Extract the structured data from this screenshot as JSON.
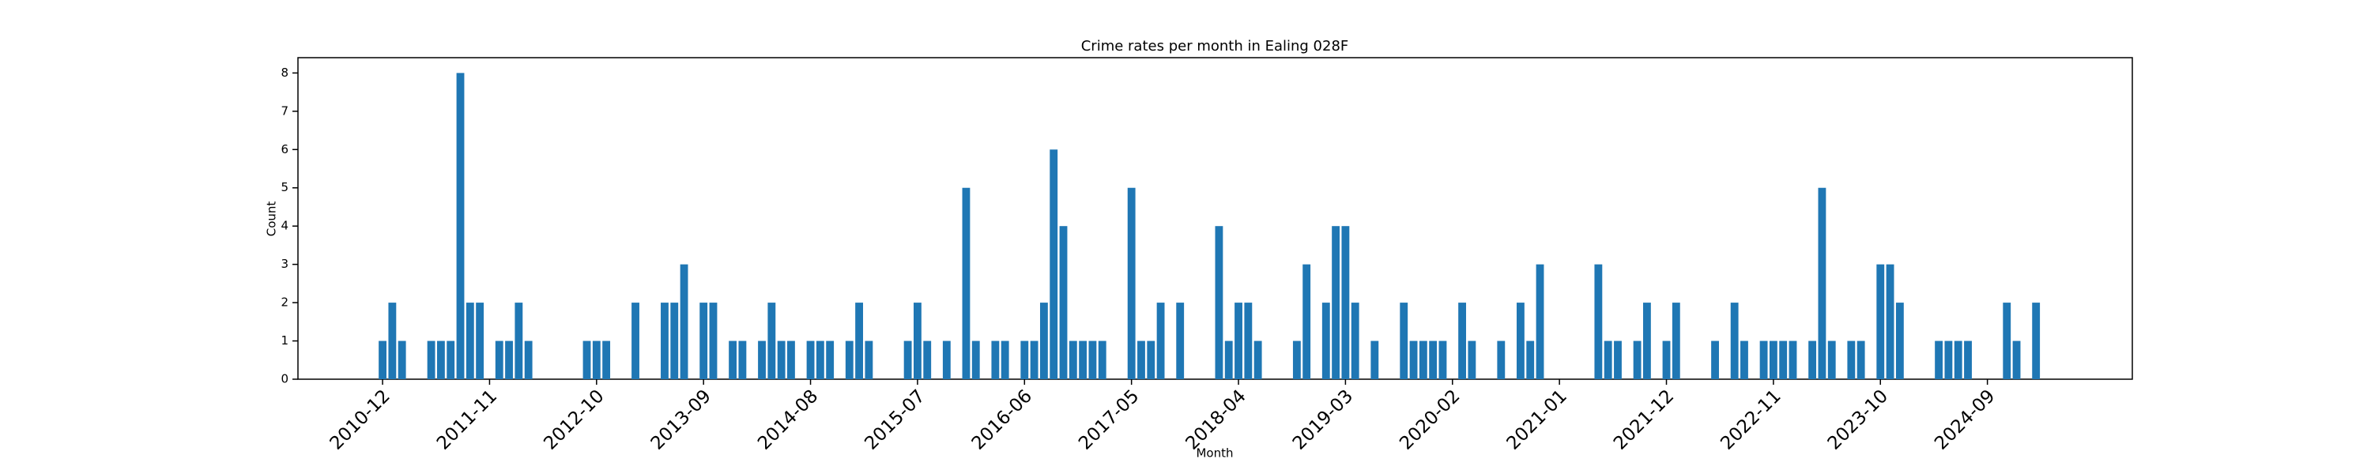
{
  "chart_data": {
    "type": "bar",
    "title": "Crime rates per month in Ealing 028F",
    "xlabel": "Month",
    "ylabel": "Count",
    "color": "#1f77b4",
    "categories": [
      "2010-12",
      null,
      null,
      null,
      null,
      null,
      null,
      null,
      null,
      null,
      null,
      "2011-11",
      null,
      null,
      null,
      null,
      null,
      null,
      null,
      null,
      null,
      null,
      "2012-10",
      null,
      null,
      null,
      null,
      null,
      null,
      null,
      null,
      null,
      null,
      "2013-09",
      null,
      null,
      null,
      null,
      null,
      null,
      null,
      null,
      null,
      null,
      "2014-08",
      null,
      null,
      null,
      null,
      null,
      null,
      null,
      null,
      null,
      null,
      "2015-07",
      null,
      null,
      null,
      null,
      null,
      null,
      null,
      null,
      null,
      null,
      "2016-06",
      null,
      null,
      null,
      null,
      null,
      null,
      null,
      null,
      null,
      null,
      "2017-05",
      null,
      null,
      null,
      null,
      null,
      null,
      null,
      null,
      null,
      null,
      "2018-04",
      null,
      null,
      null,
      null,
      null,
      null,
      null,
      null,
      null,
      null,
      "2019-03",
      null,
      null,
      null,
      null,
      null,
      null,
      null,
      null,
      null,
      null,
      "2020-02",
      null,
      null,
      null,
      null,
      null,
      null,
      null,
      null,
      null,
      null,
      "2021-01",
      null,
      null,
      null,
      null,
      null,
      null,
      null,
      null,
      null,
      null,
      "2021-12",
      null,
      null,
      null,
      null,
      null,
      null,
      null,
      null,
      null,
      null,
      "2022-11",
      null,
      null,
      null,
      null,
      null,
      null,
      null,
      null,
      null,
      null,
      "2023-10",
      null,
      null,
      null,
      null,
      null,
      null,
      null,
      null,
      null,
      null,
      "2024-09",
      null,
      null,
      null,
      null,
      null
    ],
    "values": [
      1,
      2,
      1,
      0,
      0,
      1,
      1,
      1,
      8,
      2,
      2,
      0,
      1,
      1,
      2,
      1,
      0,
      0,
      0,
      0,
      0,
      1,
      1,
      1,
      0,
      0,
      2,
      0,
      0,
      2,
      2,
      3,
      0,
      2,
      2,
      0,
      1,
      1,
      0,
      1,
      2,
      1,
      1,
      0,
      1,
      1,
      1,
      0,
      1,
      2,
      1,
      0,
      0,
      0,
      1,
      2,
      1,
      0,
      1,
      0,
      5,
      1,
      0,
      1,
      1,
      0,
      1,
      1,
      2,
      6,
      4,
      1,
      1,
      1,
      1,
      0,
      0,
      5,
      1,
      1,
      2,
      0,
      2,
      0,
      0,
      0,
      4,
      1,
      2,
      2,
      1,
      0,
      0,
      0,
      1,
      3,
      0,
      2,
      4,
      4,
      2,
      0,
      1,
      0,
      0,
      2,
      1,
      1,
      1,
      1,
      0,
      2,
      1,
      0,
      0,
      1,
      0,
      2,
      1,
      3,
      0,
      0,
      0,
      0,
      0,
      3,
      1,
      1,
      0,
      1,
      2,
      0,
      1,
      2,
      0,
      0,
      0,
      1,
      0,
      2,
      1,
      0,
      1,
      1,
      1,
      1,
      0,
      1,
      5,
      1,
      0,
      1,
      1,
      0,
      3,
      3,
      2,
      0,
      0,
      0,
      1,
      1,
      1,
      1,
      0,
      0,
      0,
      2,
      1,
      0,
      2
    ],
    "ylim": [
      0,
      8.4
    ],
    "yticks": [
      0,
      1,
      2,
      3,
      4,
      5,
      6,
      7,
      8
    ]
  }
}
